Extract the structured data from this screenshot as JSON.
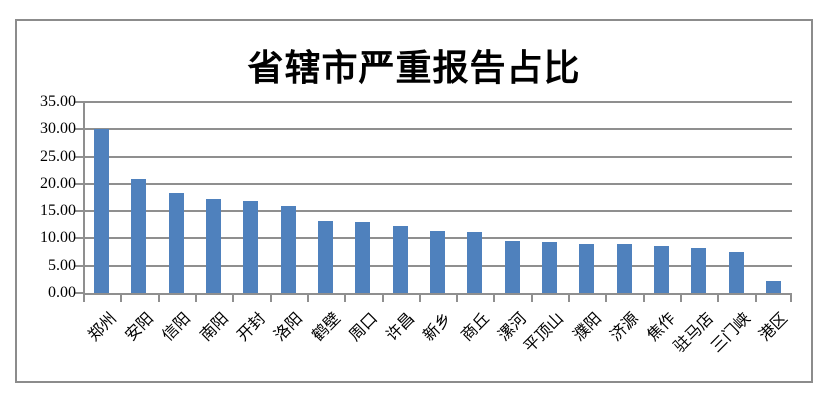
{
  "chart_data": {
    "type": "bar",
    "title": "省辖市严重报告占比",
    "categories": [
      "郑州",
      "安阳",
      "信阳",
      "南阳",
      "开封",
      "洛阳",
      "鹤壁",
      "周口",
      "许昌",
      "新乡",
      "商丘",
      "漯河",
      "平顶山",
      "濮阳",
      "济源",
      "焦作",
      "驻马店",
      "三门峡",
      "港区"
    ],
    "values": [
      30.0,
      20.9,
      18.4,
      17.3,
      16.8,
      16.0,
      13.2,
      13.0,
      12.3,
      11.4,
      11.2,
      9.6,
      9.4,
      9.0,
      9.0,
      8.6,
      8.3,
      7.6,
      2.2
    ],
    "xlabel": "",
    "ylabel": "",
    "ylim": [
      0,
      35
    ],
    "y_tick_labels": [
      "0.00",
      "5.00",
      "10.00",
      "15.00",
      "20.00",
      "25.00",
      "30.00",
      "35.00"
    ],
    "y_tick_step": 5,
    "grid": true,
    "legend_position": "none",
    "bar_color": "#4F81BD",
    "grid_color": "#8f8f8f",
    "axis_color": "#8f8f8f",
    "frame_color": "#8c8c8c",
    "background_color": "#ffffff",
    "x_label_rotation_deg": 45
  }
}
